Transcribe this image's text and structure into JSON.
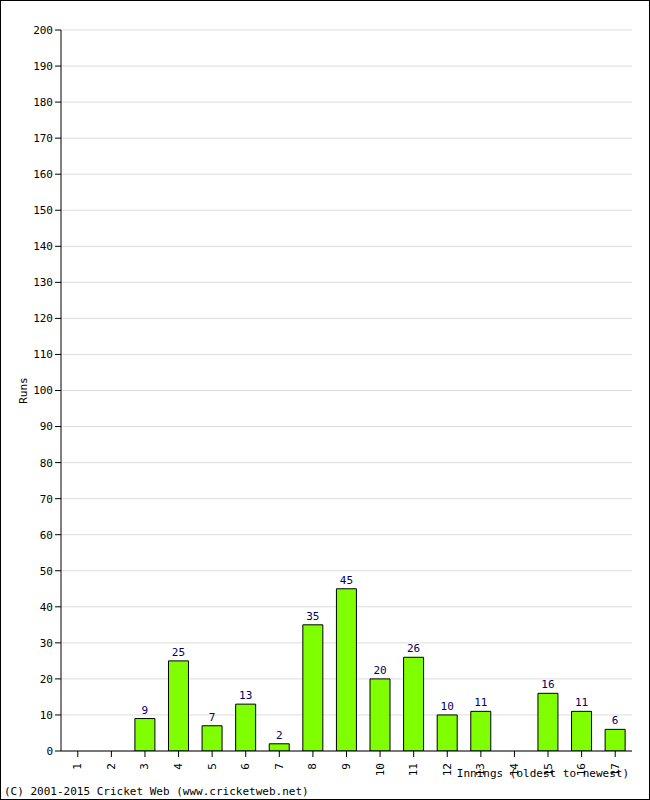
{
  "chart_data": {
    "type": "bar",
    "x_label": "Innings (oldest to newest)",
    "y_label": "Runs",
    "footer": "(C) 2001-2015 Cricket Web (www.cricketweb.net)",
    "categories": [
      "1",
      "2",
      "3",
      "4",
      "5",
      "6",
      "7",
      "8",
      "9",
      "10",
      "11",
      "12",
      "13",
      "14",
      "15",
      "16",
      "17"
    ],
    "values": [
      0,
      0,
      9,
      25,
      7,
      13,
      2,
      35,
      45,
      20,
      26,
      10,
      11,
      0,
      16,
      11,
      6
    ],
    "color": "#80ff00",
    "ylim": [
      0,
      200
    ],
    "yticks": [
      0,
      10,
      20,
      30,
      40,
      50,
      60,
      70,
      80,
      90,
      100,
      110,
      120,
      130,
      140,
      150,
      160,
      170,
      180,
      190,
      200
    ],
    "grid": true,
    "data_labels": true
  }
}
